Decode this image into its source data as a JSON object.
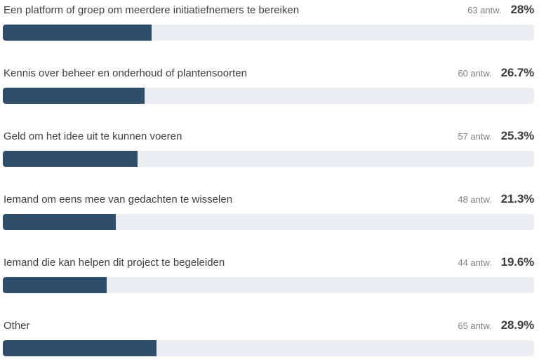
{
  "chart_data": {
    "type": "bar",
    "orientation": "horizontal",
    "title": "",
    "xlabel": "",
    "ylabel": "",
    "xlim": [
      0,
      100
    ],
    "grid": false,
    "legend": false,
    "categories": [
      "Een platform of groep om meerdere initiatiefnemers te bereiken",
      "Kennis over beheer en onderhoud of plantensoorten",
      "Geld om het idee uit te kunnen voeren",
      "Iemand om eens mee van gedachten te wisselen",
      "Iemand die kan helpen dit project te begeleiden",
      "Other"
    ],
    "series": [
      {
        "name": "antwoorden",
        "values": [
          63,
          60,
          57,
          48,
          44,
          65
        ]
      },
      {
        "name": "percentage",
        "values": [
          28,
          26.7,
          25.3,
          21.3,
          19.6,
          28.9
        ]
      }
    ],
    "value_suffix": "antw."
  },
  "rows": [
    {
      "label": "Een platform of groep om meerdere initiatiefnemers te bereiken",
      "count": "63 antw.",
      "pct": "28%",
      "pct_value": 28
    },
    {
      "label": "Kennis over beheer en onderhoud of plantensoorten",
      "count": "60 antw.",
      "pct": "26.7%",
      "pct_value": 26.7
    },
    {
      "label": "Geld om het idee uit te kunnen voeren",
      "count": "57 antw.",
      "pct": "25.3%",
      "pct_value": 25.3
    },
    {
      "label": "Iemand om eens mee van gedachten te wisselen",
      "count": "48 antw.",
      "pct": "21.3%",
      "pct_value": 21.3
    },
    {
      "label": "Iemand die kan helpen dit project te begeleiden",
      "count": "44 antw.",
      "pct": "19.6%",
      "pct_value": 19.6
    },
    {
      "label": "Other",
      "count": "65 antw.",
      "pct": "28.9%",
      "pct_value": 28.9
    }
  ],
  "colors": {
    "bar_fill": "#2e4e6c",
    "bar_track": "#e9ecf1",
    "label": "#3f3f3f",
    "count": "#7f7f7f",
    "pct": "#3d3d3d",
    "background": "#ffffff"
  }
}
